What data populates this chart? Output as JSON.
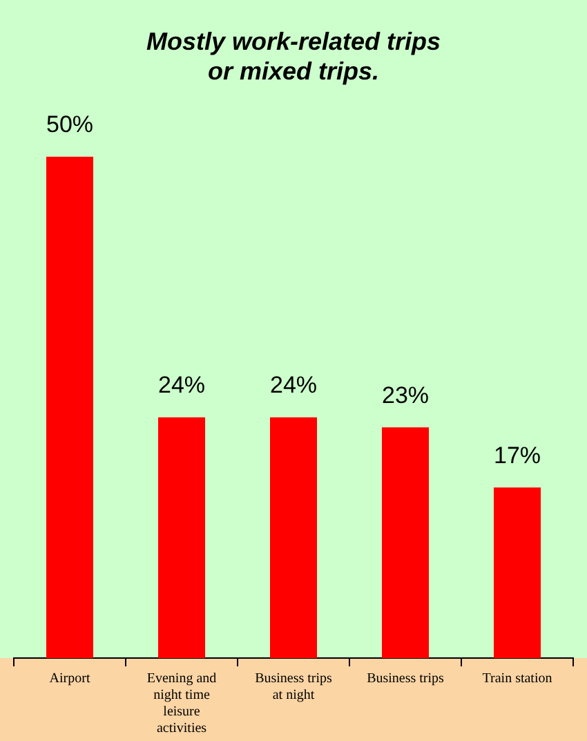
{
  "chart_data": {
    "type": "bar",
    "title": "Mostly work-related trips or mixed trips.",
    "categories": [
      "Airport",
      "Evening and night time leisure activities",
      "Business trips at night",
      "Business trips",
      "Train station"
    ],
    "values": [
      50,
      24,
      24,
      23,
      17
    ],
    "value_labels": [
      "50%",
      "24%",
      "24%",
      "23%",
      "17%"
    ],
    "color": "#ff0000",
    "grid": false,
    "legend": false
  }
}
